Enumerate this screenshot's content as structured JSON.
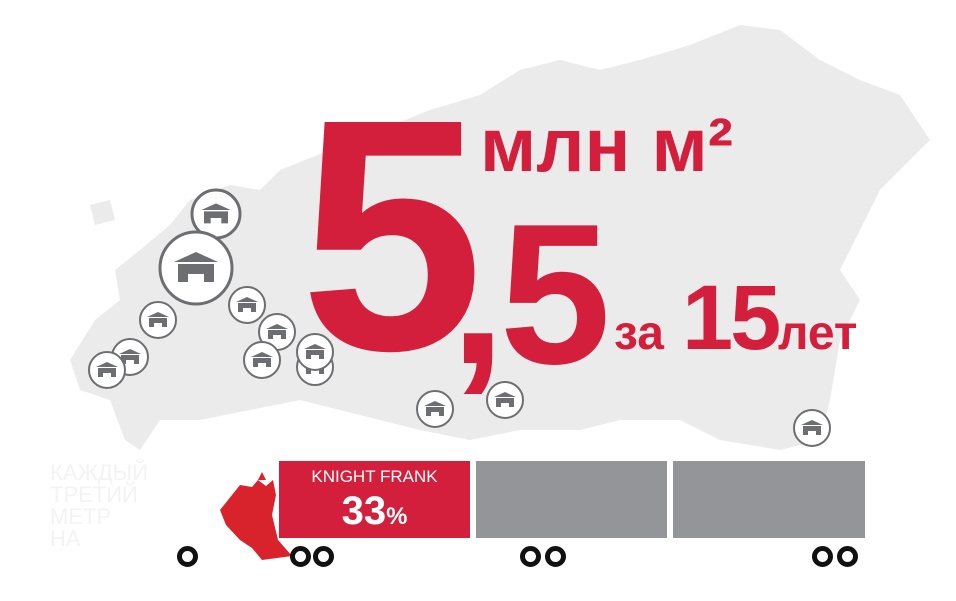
{
  "headline": {
    "big_digit": "5",
    "decimal": ",5",
    "unit": "млн м²",
    "za": "за",
    "years_number": "15",
    "years_word": "лет"
  },
  "faded_caption": [
    "КАЖДЫЙ",
    "ТРЕТИЙ",
    "МЕТР",
    "НА"
  ],
  "truck": {
    "company": "KNIGHT FRANK",
    "share_value": "33",
    "share_unit": "%",
    "share_fraction": 0.33
  },
  "icons": {
    "marker": "warehouse-icon",
    "emblem": "double-headed-eagle-icon"
  },
  "colors": {
    "accent": "#d31f3c",
    "truck_gray": "#939598",
    "map": "#ebebeb",
    "marker_ring": "#6d6e71"
  }
}
